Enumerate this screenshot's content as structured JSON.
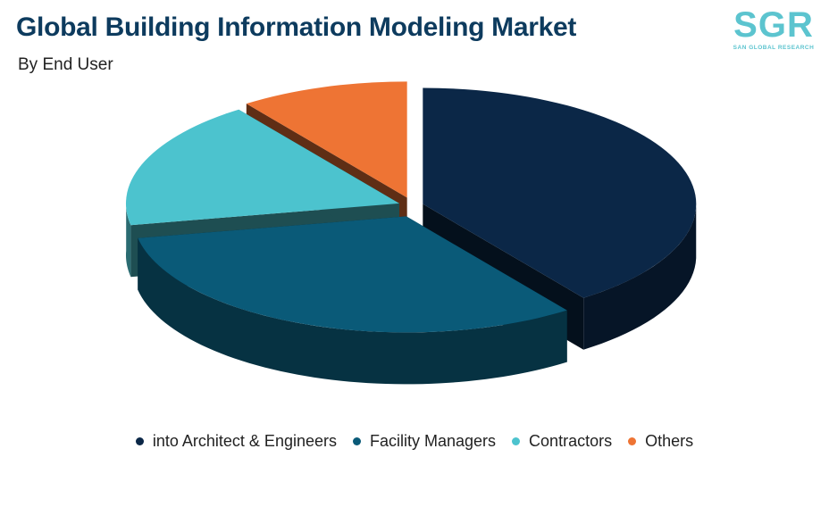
{
  "header": {
    "title": "Global Building Information Modeling Market",
    "subtitle": "By End User"
  },
  "logo": {
    "mark": "SGR",
    "text": "SAN GLOBAL RESEARCH"
  },
  "chart_data": {
    "type": "pie",
    "style": "3d-exploded",
    "title": "Global Building Information Modeling Market",
    "subtitle": "By End User",
    "categories": [
      "into Architect & Engineers",
      "Facility Managers",
      "Contractors",
      "Others"
    ],
    "values": [
      40,
      32,
      18,
      10
    ],
    "colors": [
      "#0b2747",
      "#0a5a78",
      "#4cc3ce",
      "#ee7434"
    ],
    "legend_position": "bottom"
  }
}
